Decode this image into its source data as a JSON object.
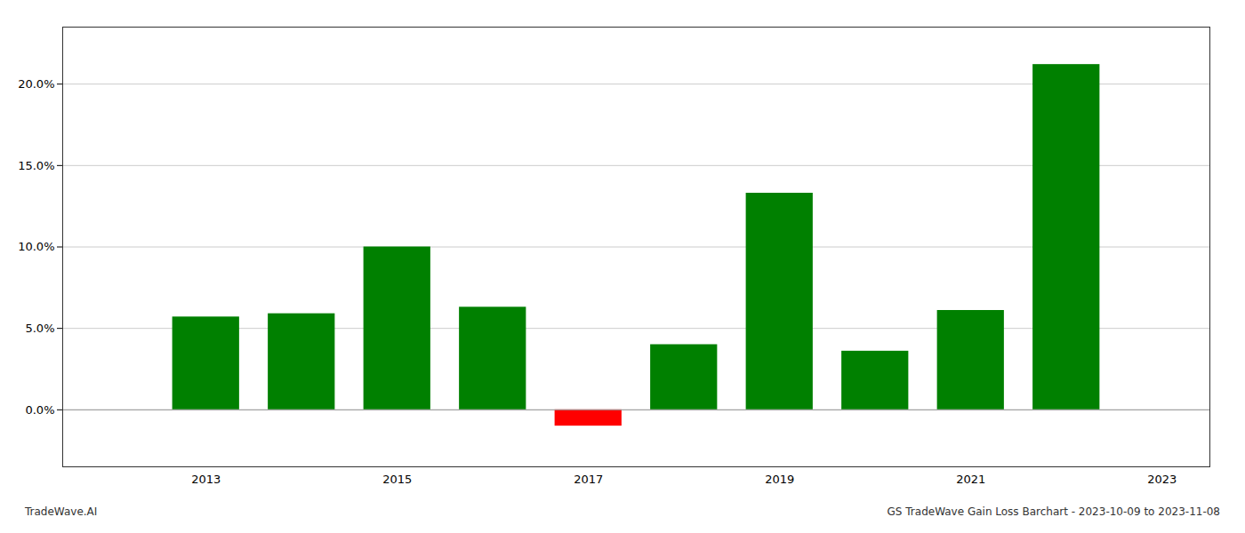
{
  "chart_data": {
    "type": "bar",
    "x": [
      2013,
      2014,
      2015,
      2016,
      2017,
      2018,
      2019,
      2020,
      2021,
      2022
    ],
    "values": [
      0.057,
      0.059,
      0.1,
      0.063,
      -0.01,
      0.04,
      0.133,
      0.036,
      0.061,
      0.212
    ],
    "colors": [
      "#008000",
      "#008000",
      "#008000",
      "#008000",
      "#ff0000",
      "#008000",
      "#008000",
      "#008000",
      "#008000",
      "#008000"
    ],
    "xlim": [
      2011.5,
      2023.5
    ],
    "xticks": [
      2013,
      2015,
      2017,
      2019,
      2021,
      2023
    ],
    "ylim": [
      -0.035,
      0.235
    ],
    "yticks": [
      {
        "value": 0.0,
        "label": "0.0%"
      },
      {
        "value": 0.05,
        "label": "5.0%"
      },
      {
        "value": 0.1,
        "label": "10.0%"
      },
      {
        "value": 0.15,
        "label": "15.0%"
      },
      {
        "value": 0.2,
        "label": "20.0%"
      }
    ],
    "grid": true,
    "annotations": [
      "TradeWave.AI",
      "GS TradeWave Gain Loss Barchart - 2023-10-09 to 2023-11-08"
    ]
  }
}
